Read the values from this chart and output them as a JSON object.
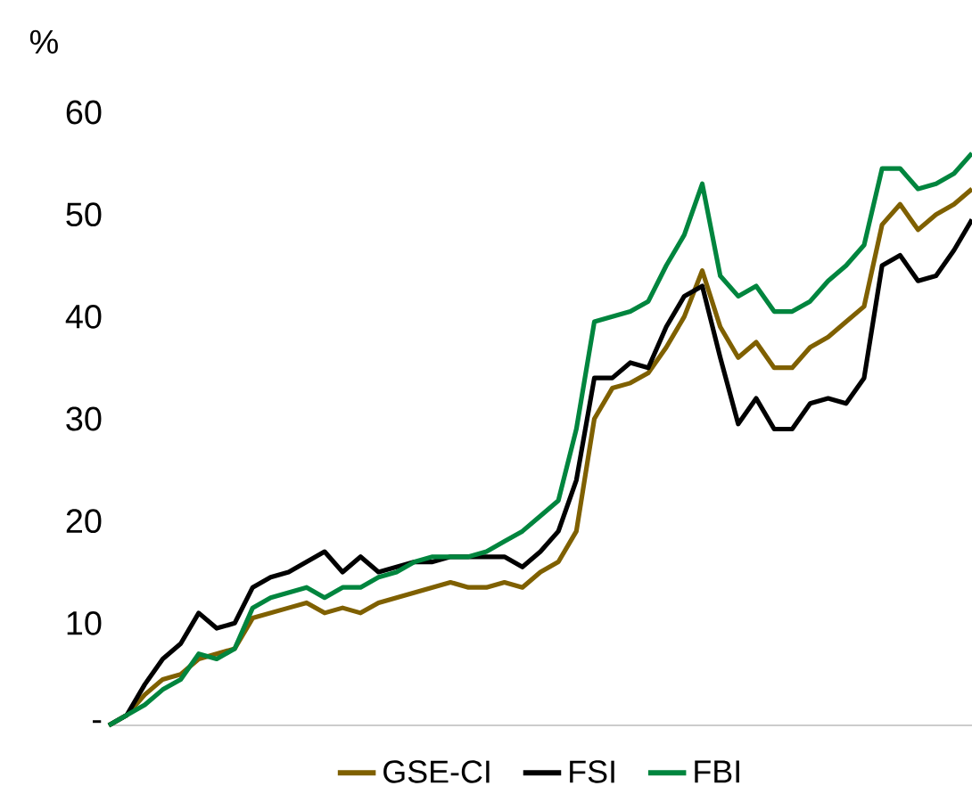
{
  "chart_data": {
    "type": "line",
    "ylabel": "%",
    "categories": [
      null,
      null,
      null,
      null,
      null,
      null,
      null,
      null,
      null,
      null,
      null,
      null,
      null,
      null,
      null,
      null,
      null,
      null,
      null,
      null,
      null,
      null,
      null,
      null,
      null,
      null,
      null,
      null,
      null,
      null,
      null,
      null,
      null,
      null,
      null,
      null,
      null,
      null,
      null,
      null,
      null,
      null,
      null,
      null,
      null,
      null,
      null,
      null,
      null
    ],
    "series": [
      {
        "name": "GSE-CI",
        "color": "#7f6000",
        "values": [
          0,
          1,
          3,
          4.5,
          5,
          6.5,
          7,
          7.5,
          10.5,
          11,
          11.5,
          12,
          11,
          11.5,
          11,
          12,
          12.5,
          13,
          13.5,
          14,
          13.5,
          13.5,
          14,
          13.5,
          15,
          16,
          19,
          30,
          33,
          33.5,
          34.5,
          37,
          40,
          44.5,
          39,
          36,
          37.5,
          35,
          35,
          37,
          38,
          39.5,
          41,
          49,
          51,
          48.5,
          50,
          51,
          52.5
        ]
      },
      {
        "name": "FSI",
        "color": "#000000",
        "values": [
          0,
          1,
          4,
          6.5,
          8,
          11,
          9.5,
          10,
          13.5,
          14.5,
          15,
          16,
          17,
          15,
          16.5,
          15,
          15.5,
          16,
          16,
          16.5,
          16.5,
          16.5,
          16.5,
          15.5,
          17,
          19,
          24,
          34,
          34,
          35.5,
          35,
          39,
          42,
          43,
          36,
          29.5,
          32,
          29,
          29,
          31.5,
          32,
          31.5,
          34,
          45,
          46,
          43.5,
          44,
          46.5,
          49.5
        ]
      },
      {
        "name": "FBI",
        "color": "#00853e",
        "values": [
          0,
          1,
          2,
          3.5,
          4.5,
          7,
          6.5,
          7.5,
          11.5,
          12.5,
          13,
          13.5,
          12.5,
          13.5,
          13.5,
          14.5,
          15,
          16,
          16.5,
          16.5,
          16.5,
          17,
          18,
          19,
          20.5,
          22,
          29,
          39.5,
          40,
          40.5,
          41.5,
          45,
          48,
          53,
          44,
          42,
          43,
          40.5,
          40.5,
          41.5,
          43.5,
          45,
          47,
          54.5,
          54.5,
          52.5,
          53,
          54,
          56
        ]
      }
    ],
    "ylim": [
      0,
      60
    ],
    "yticks": [
      {
        "value": 0,
        "label": "-"
      },
      10,
      20,
      30,
      40,
      50,
      60
    ],
    "tick_labels": "y",
    "legend": "bottom",
    "grid": false,
    "marker": "none",
    "line_style": "solid"
  }
}
